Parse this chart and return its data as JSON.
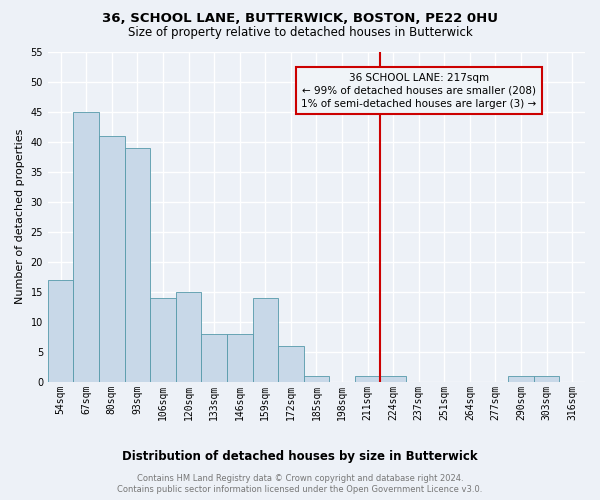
{
  "title1": "36, SCHOOL LANE, BUTTERWICK, BOSTON, PE22 0HU",
  "title2": "Size of property relative to detached houses in Butterwick",
  "xlabel": "Distribution of detached houses by size in Butterwick",
  "ylabel": "Number of detached properties",
  "categories": [
    "54sqm",
    "67sqm",
    "80sqm",
    "93sqm",
    "106sqm",
    "120sqm",
    "133sqm",
    "146sqm",
    "159sqm",
    "172sqm",
    "185sqm",
    "198sqm",
    "211sqm",
    "224sqm",
    "237sqm",
    "251sqm",
    "264sqm",
    "277sqm",
    "290sqm",
    "303sqm",
    "316sqm"
  ],
  "values": [
    17,
    45,
    41,
    39,
    14,
    15,
    8,
    8,
    14,
    6,
    1,
    0,
    1,
    1,
    0,
    0,
    0,
    0,
    1,
    1,
    0
  ],
  "bar_color": "#c8d8e8",
  "bar_edge_color": "#5599aa",
  "vline_index": 12.5,
  "vline_color": "#cc0000",
  "annotation_text": "36 SCHOOL LANE: 217sqm\n← 99% of detached houses are smaller (208)\n1% of semi-detached houses are larger (3) →",
  "annotation_box_color": "#cc0000",
  "annotation_bg": "#f0f4f8",
  "ylim": [
    0,
    55
  ],
  "yticks": [
    0,
    5,
    10,
    15,
    20,
    25,
    30,
    35,
    40,
    45,
    50,
    55
  ],
  "footer1": "Contains HM Land Registry data © Crown copyright and database right 2024.",
  "footer2": "Contains public sector information licensed under the Open Government Licence v3.0.",
  "bg_color": "#edf1f7",
  "grid_color": "#ffffff",
  "title1_fontsize": 9.5,
  "title2_fontsize": 8.5,
  "ylabel_fontsize": 8,
  "xlabel_fontsize": 8.5,
  "tick_fontsize": 7,
  "annotation_fontsize": 7.5,
  "footer_fontsize": 6
}
